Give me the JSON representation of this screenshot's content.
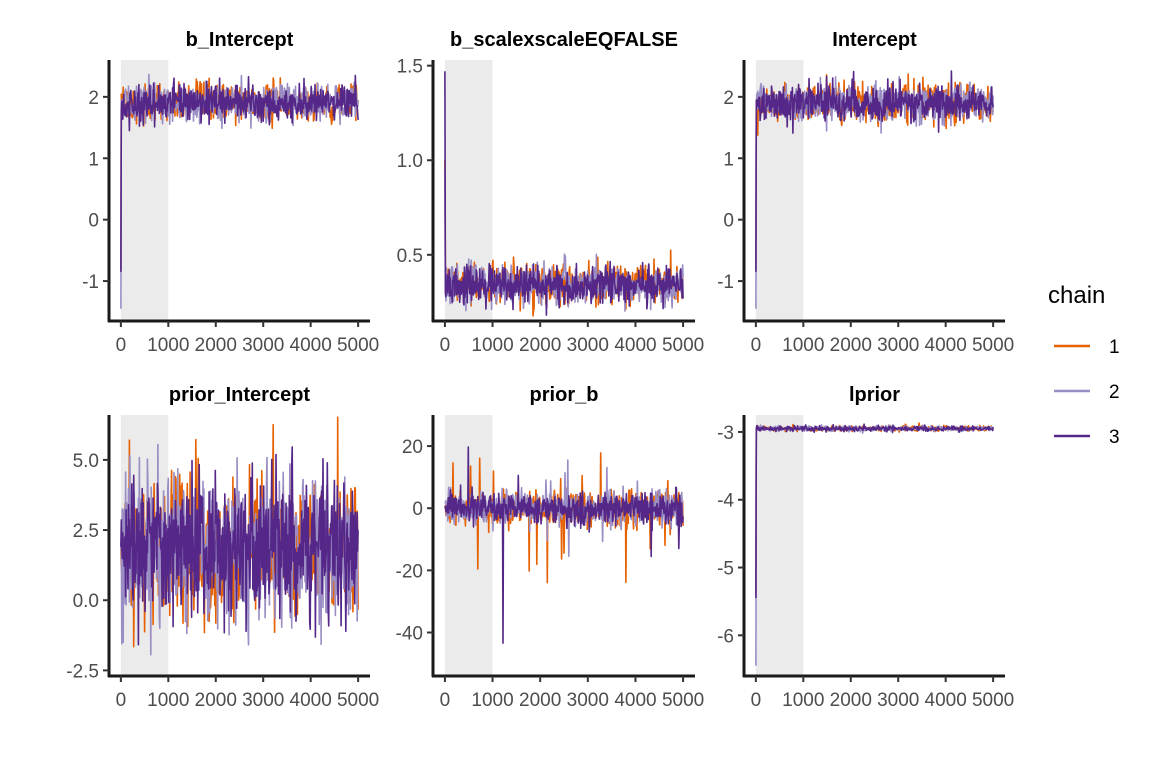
{
  "legend": {
    "title": "chain",
    "position": "right",
    "entries": [
      {
        "label": "1",
        "color": "#e66101"
      },
      {
        "label": "2",
        "color": "#9a8dc4"
      },
      {
        "label": "3",
        "color": "#542788"
      }
    ]
  },
  "chart_data": [
    {
      "type": "line",
      "title": "b_Intercept",
      "xlabel": "",
      "ylabel": "",
      "xlim": [
        -250,
        5250
      ],
      "ylim": [
        -1.65,
        2.6
      ],
      "xticks": [
        0,
        1000,
        2000,
        3000,
        4000,
        5000
      ],
      "xtick_labels": [
        "0",
        "1000",
        "2000",
        "3000",
        "4000",
        "5000"
      ],
      "yticks": [
        -1,
        0,
        1,
        2
      ],
      "ytick_labels": [
        "-1",
        "0",
        "1",
        "2"
      ],
      "warmup": [
        0,
        1000
      ],
      "grid": false,
      "trace_model": {
        "n_iter": 5000,
        "start": [
          -0.8,
          -1.45,
          -0.85
        ],
        "mean": 1.9,
        "sd": 0.15,
        "heavy_tail": false,
        "drift": 0
      },
      "series": [
        {
          "name": "1"
        },
        {
          "name": "2"
        },
        {
          "name": "3"
        }
      ]
    },
    {
      "type": "line",
      "title": "b_scalexscaleEQFALSE",
      "xlabel": "",
      "ylabel": "",
      "xlim": [
        -250,
        5250
      ],
      "ylim": [
        0.15,
        1.53
      ],
      "xticks": [
        0,
        1000,
        2000,
        3000,
        4000,
        5000
      ],
      "xtick_labels": [
        "0",
        "1000",
        "2000",
        "3000",
        "4000",
        "5000"
      ],
      "yticks": [
        0.5,
        1.0,
        1.5
      ],
      "ytick_labels": [
        "0.5",
        "1.0",
        "1.5"
      ],
      "warmup": [
        0,
        1000
      ],
      "grid": false,
      "trace_model": {
        "n_iter": 5000,
        "start": [
          1.0,
          0.95,
          1.47
        ],
        "mean": 0.34,
        "sd": 0.05,
        "heavy_tail": false,
        "drift": 0
      },
      "series": [
        {
          "name": "1"
        },
        {
          "name": "2"
        },
        {
          "name": "3"
        }
      ]
    },
    {
      "type": "line",
      "title": "Intercept",
      "xlabel": "",
      "ylabel": "",
      "xlim": [
        -250,
        5250
      ],
      "ylim": [
        -1.65,
        2.6
      ],
      "xticks": [
        0,
        1000,
        2000,
        3000,
        4000,
        5000
      ],
      "xtick_labels": [
        "0",
        "1000",
        "2000",
        "3000",
        "4000",
        "5000"
      ],
      "yticks": [
        -1,
        0,
        1,
        2
      ],
      "ytick_labels": [
        "-1",
        "0",
        "1",
        "2"
      ],
      "warmup": [
        0,
        1000
      ],
      "grid": false,
      "trace_model": {
        "n_iter": 5000,
        "start": [
          -0.8,
          -1.45,
          -0.85
        ],
        "mean": 1.9,
        "sd": 0.15,
        "heavy_tail": false,
        "drift": 0
      },
      "series": [
        {
          "name": "1"
        },
        {
          "name": "2"
        },
        {
          "name": "3"
        }
      ]
    },
    {
      "type": "line",
      "title": "prior_Intercept",
      "xlabel": "",
      "ylabel": "",
      "xlim": [
        -250,
        5250
      ],
      "ylim": [
        -2.7,
        6.6
      ],
      "xticks": [
        0,
        1000,
        2000,
        3000,
        4000,
        5000
      ],
      "xtick_labels": [
        "0",
        "1000",
        "2000",
        "3000",
        "4000",
        "5000"
      ],
      "yticks": [
        -2.5,
        0.0,
        2.5,
        5.0
      ],
      "ytick_labels": [
        "-2.5",
        "0.0",
        "2.5",
        "5.0"
      ],
      "warmup": [
        0,
        1000
      ],
      "grid": false,
      "trace_model": {
        "n_iter": 5000,
        "start": [
          1.9,
          1.8,
          1.9
        ],
        "mean": 1.9,
        "sd": 1.3,
        "heavy_tail": false,
        "drift": 0
      },
      "series": [
        {
          "name": "1"
        },
        {
          "name": "2"
        },
        {
          "name": "3"
        }
      ]
    },
    {
      "type": "line",
      "title": "prior_b",
      "xlabel": "",
      "ylabel": "",
      "xlim": [
        -250,
        5250
      ],
      "ylim": [
        -54,
        30
      ],
      "xticks": [
        0,
        1000,
        2000,
        3000,
        4000,
        5000
      ],
      "xtick_labels": [
        "0",
        "1000",
        "2000",
        "3000",
        "4000",
        "5000"
      ],
      "yticks": [
        -40,
        -20,
        0,
        20
      ],
      "ytick_labels": [
        "-40",
        "-20",
        "0",
        "20"
      ],
      "warmup": [
        0,
        1000
      ],
      "grid": false,
      "trace_model": {
        "n_iter": 5000,
        "start": [
          1,
          2,
          0
        ],
        "mean": 0,
        "sd": 2.5,
        "heavy_tail": true,
        "drift": 0
      },
      "series": [
        {
          "name": "1"
        },
        {
          "name": "2"
        },
        {
          "name": "3"
        }
      ]
    },
    {
      "type": "line",
      "title": "lprior",
      "xlabel": "",
      "ylabel": "",
      "xlim": [
        -250,
        5250
      ],
      "ylim": [
        -6.6,
        -2.75
      ],
      "xticks": [
        0,
        1000,
        2000,
        3000,
        4000,
        5000
      ],
      "xtick_labels": [
        "0",
        "1000",
        "2000",
        "3000",
        "4000",
        "5000"
      ],
      "yticks": [
        -6,
        -5,
        -4,
        -3
      ],
      "ytick_labels": [
        "-6",
        "-5",
        "-4",
        "-3"
      ],
      "warmup": [
        0,
        1000
      ],
      "grid": false,
      "trace_model": {
        "n_iter": 5000,
        "start": [
          -5.4,
          -6.45,
          -5.45
        ],
        "mean": -2.95,
        "sd": 0.02,
        "heavy_tail": false,
        "drift": 0
      },
      "series": [
        {
          "name": "1"
        },
        {
          "name": "2"
        },
        {
          "name": "3"
        }
      ]
    }
  ]
}
